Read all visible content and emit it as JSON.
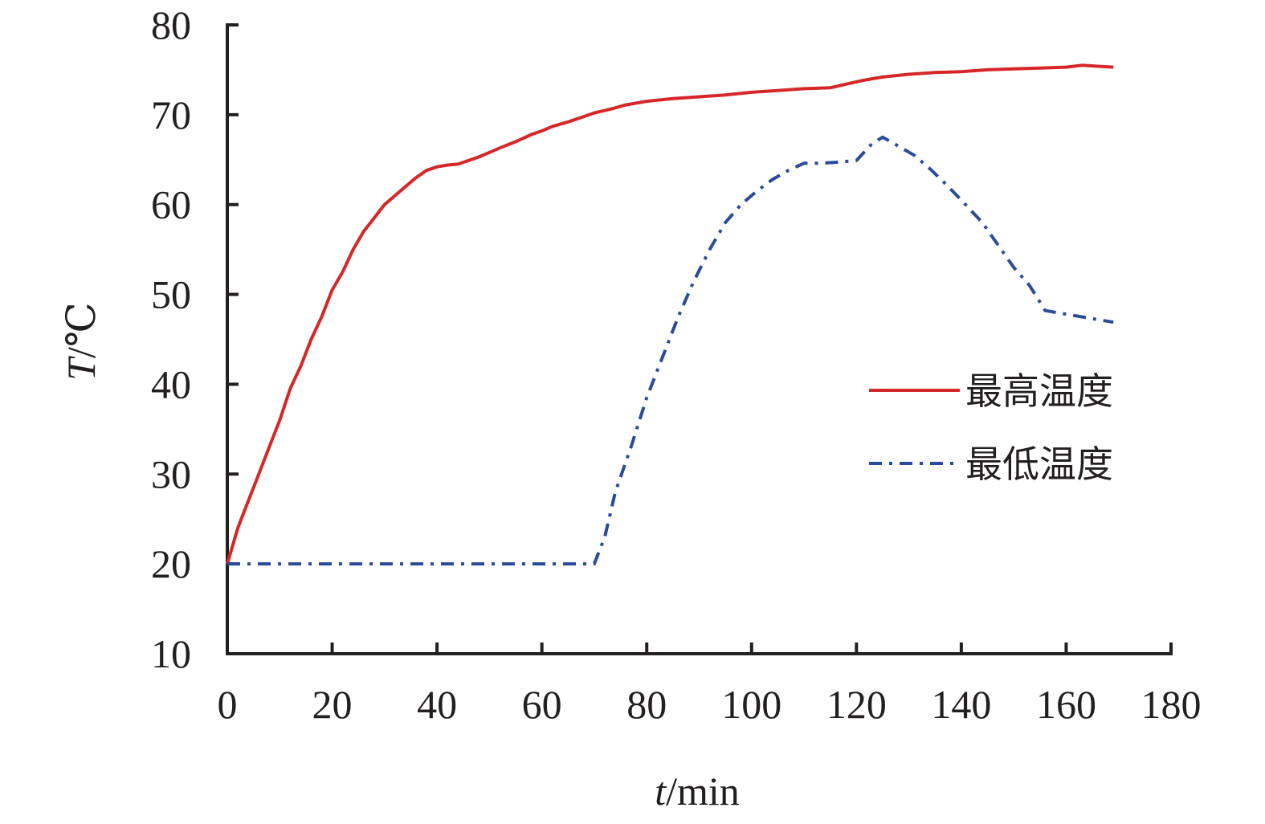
{
  "chart_data": {
    "type": "line",
    "xlabel": {
      "var": "t",
      "unit": "/min"
    },
    "ylabel": {
      "var": "T",
      "unit": "/℃"
    },
    "xlim": [
      0,
      180
    ],
    "ylim": [
      10,
      80
    ],
    "xticks": [
      0,
      20,
      40,
      60,
      80,
      100,
      120,
      140,
      160,
      180
    ],
    "yticks": [
      10,
      20,
      30,
      40,
      50,
      60,
      70,
      80
    ],
    "grid": false,
    "legend": "right",
    "series": [
      {
        "name": "最高温度",
        "color": "#d62728",
        "style": "solid",
        "points": [
          [
            0,
            20
          ],
          [
            2,
            24
          ],
          [
            4,
            27
          ],
          [
            6,
            30
          ],
          [
            8,
            33
          ],
          [
            10,
            36
          ],
          [
            12,
            39.5
          ],
          [
            14,
            42
          ],
          [
            16,
            45
          ],
          [
            18,
            47.5
          ],
          [
            20,
            50.5
          ],
          [
            22,
            52.5
          ],
          [
            24,
            55
          ],
          [
            26,
            57
          ],
          [
            28,
            58.5
          ],
          [
            30,
            60
          ],
          [
            32,
            61
          ],
          [
            34,
            62
          ],
          [
            36,
            63
          ],
          [
            38,
            63.8
          ],
          [
            40,
            64.2
          ],
          [
            42,
            64.4
          ],
          [
            44,
            64.5
          ],
          [
            46,
            64.9
          ],
          [
            48,
            65.3
          ],
          [
            50,
            65.8
          ],
          [
            52,
            66.3
          ],
          [
            55,
            67
          ],
          [
            58,
            67.8
          ],
          [
            60,
            68.2
          ],
          [
            62,
            68.7
          ],
          [
            65,
            69.2
          ],
          [
            68,
            69.8
          ],
          [
            70,
            70.2
          ],
          [
            73,
            70.6
          ],
          [
            76,
            71.1
          ],
          [
            80,
            71.5
          ],
          [
            85,
            71.8
          ],
          [
            90,
            72
          ],
          [
            95,
            72.2
          ],
          [
            100,
            72.5
          ],
          [
            105,
            72.7
          ],
          [
            110,
            72.9
          ],
          [
            115,
            73
          ],
          [
            118,
            73.4
          ],
          [
            121,
            73.8
          ],
          [
            125,
            74.2
          ],
          [
            130,
            74.5
          ],
          [
            135,
            74.7
          ],
          [
            140,
            74.8
          ],
          [
            145,
            75
          ],
          [
            150,
            75.1
          ],
          [
            155,
            75.2
          ],
          [
            160,
            75.3
          ],
          [
            163,
            75.5
          ],
          [
            166,
            75.4
          ],
          [
            169,
            75.3
          ]
        ]
      },
      {
        "name": "最低温度",
        "color": "#2b4b9b",
        "style": "dashdot",
        "points": [
          [
            0,
            20
          ],
          [
            10,
            20
          ],
          [
            20,
            20
          ],
          [
            30,
            20
          ],
          [
            40,
            20
          ],
          [
            50,
            20
          ],
          [
            60,
            20
          ],
          [
            70,
            20
          ],
          [
            72,
            23
          ],
          [
            74,
            28
          ],
          [
            77,
            33
          ],
          [
            80,
            38.5
          ],
          [
            83,
            43
          ],
          [
            86,
            47.5
          ],
          [
            89,
            51.5
          ],
          [
            92,
            55
          ],
          [
            95,
            58
          ],
          [
            98,
            60
          ],
          [
            101,
            61.5
          ],
          [
            104,
            62.8
          ],
          [
            107,
            63.8
          ],
          [
            110,
            64.6
          ],
          [
            113,
            64.6
          ],
          [
            116,
            64.7
          ],
          [
            120,
            64.9
          ],
          [
            123,
            66.8
          ],
          [
            125,
            67.5
          ],
          [
            128,
            66.5
          ],
          [
            131,
            65.5
          ],
          [
            134,
            64
          ],
          [
            137,
            62.3
          ],
          [
            140,
            60.5
          ],
          [
            144,
            58
          ],
          [
            147,
            55.5
          ],
          [
            150,
            53
          ],
          [
            153,
            51
          ],
          [
            156,
            48.2
          ],
          [
            160,
            47.8
          ],
          [
            165,
            47.3
          ],
          [
            169,
            46.9
          ]
        ]
      }
    ]
  }
}
